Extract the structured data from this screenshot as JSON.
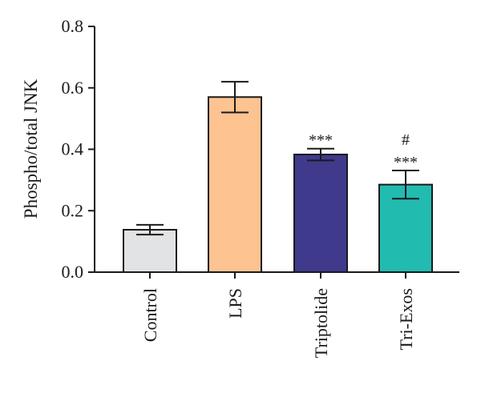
{
  "chart_data": {
    "type": "bar",
    "title": "",
    "xlabel": "",
    "ylabel": "Phospho/total JNK",
    "ylim": [
      0,
      0.8
    ],
    "yticks": [
      "0.0",
      "0.2",
      "0.4",
      "0.6",
      "0.8"
    ],
    "grid": false,
    "categories": [
      "Control",
      "LPS",
      "Triptolide",
      "Tri-Exos"
    ],
    "values": [
      0.138,
      0.57,
      0.383,
      0.285
    ],
    "errors": [
      0.016,
      0.05,
      0.019,
      0.046
    ],
    "colors": [
      "#e2e3e5",
      "#fdc391",
      "#3f3a8c",
      "#22bbb0"
    ],
    "annotations": [
      {
        "category": "Triptolide",
        "lines": [
          "***"
        ]
      },
      {
        "category": "Tri-Exos",
        "lines": [
          "#",
          "***"
        ]
      }
    ]
  }
}
